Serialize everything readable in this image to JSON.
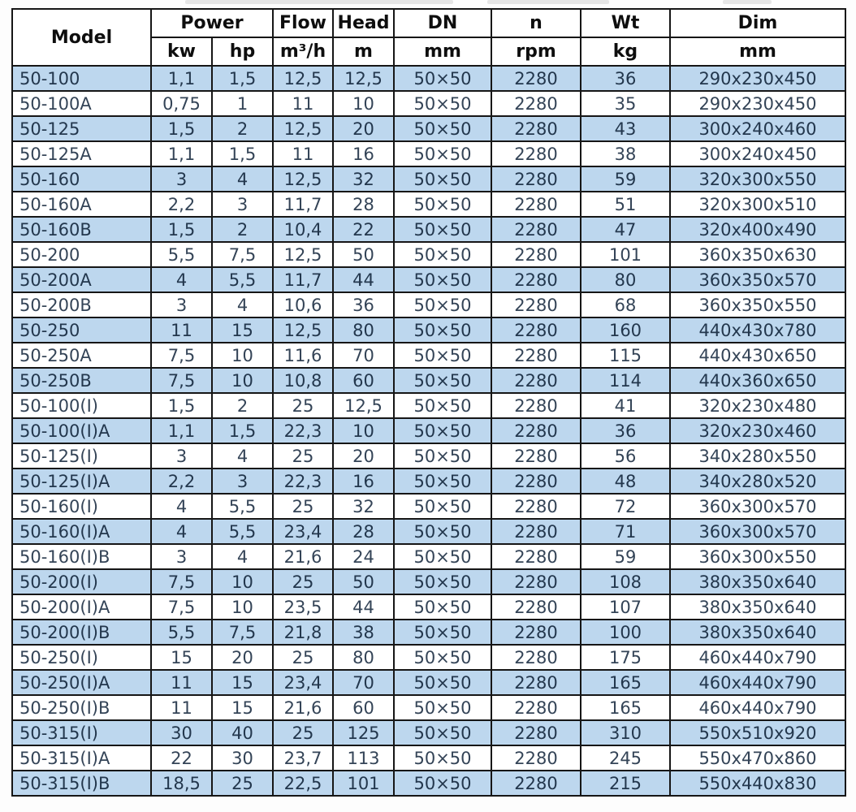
{
  "colors": {
    "alt_row_bg": "#bdd7ee",
    "grid_border": "#161616",
    "body_text": "#344457",
    "header_text": "#0e0e0e",
    "page_bg": "#fdfdfd"
  },
  "table": {
    "header": {
      "model_label": "Model",
      "power_label": "Power",
      "power_units": [
        "kw",
        "hp"
      ],
      "flow_label": "Flow",
      "flow_unit": "m³/h",
      "head_label": "Head",
      "head_unit": "m",
      "dn_label": "DN",
      "dn_unit": "mm",
      "n_label": "n",
      "n_unit": "rpm",
      "wt_label": "Wt",
      "wt_unit": "kg",
      "dim_label": "Dim",
      "dim_unit": "mm"
    },
    "rows": [
      [
        "50-100",
        "1,1",
        "1,5",
        "12,5",
        "12,5",
        "50×50",
        "2280",
        "36",
        "290x230x450"
      ],
      [
        "50-100A",
        "0,75",
        "1",
        "11",
        "10",
        "50×50",
        "2280",
        "35",
        "290x230x450"
      ],
      [
        "50-125",
        "1,5",
        "2",
        "12,5",
        "20",
        "50×50",
        "2280",
        "43",
        "300x240x460"
      ],
      [
        "50-125A",
        "1,1",
        "1,5",
        "11",
        "16",
        "50×50",
        "2280",
        "38",
        "300x240x450"
      ],
      [
        "50-160",
        "3",
        "4",
        "12,5",
        "32",
        "50×50",
        "2280",
        "59",
        "320x300x550"
      ],
      [
        "50-160A",
        "2,2",
        "3",
        "11,7",
        "28",
        "50×50",
        "2280",
        "51",
        "320x300x510"
      ],
      [
        "50-160B",
        "1,5",
        "2",
        "10,4",
        "22",
        "50×50",
        "2280",
        "47",
        "320x400x490"
      ],
      [
        "50-200",
        "5,5",
        "7,5",
        "12,5",
        "50",
        "50×50",
        "2280",
        "101",
        "360x350x630"
      ],
      [
        "50-200A",
        "4",
        "5,5",
        "11,7",
        "44",
        "50×50",
        "2280",
        "80",
        "360x350x570"
      ],
      [
        "50-200B",
        "3",
        "4",
        "10,6",
        "36",
        "50×50",
        "2280",
        "68",
        "360x350x550"
      ],
      [
        "50-250",
        "11",
        "15",
        "12,5",
        "80",
        "50×50",
        "2280",
        "160",
        "440x430x780"
      ],
      [
        "50-250A",
        "7,5",
        "10",
        "11,6",
        "70",
        "50×50",
        "2280",
        "115",
        "440x430x650"
      ],
      [
        "50-250B",
        "7,5",
        "10",
        "10,8",
        "60",
        "50×50",
        "2280",
        "114",
        "440x360x650"
      ],
      [
        "50-100(I)",
        "1,5",
        "2",
        "25",
        "12,5",
        "50×50",
        "2280",
        "41",
        "320x230x480"
      ],
      [
        "50-100(I)A",
        "1,1",
        "1,5",
        "22,3",
        "10",
        "50×50",
        "2280",
        "36",
        "320x230x460"
      ],
      [
        "50-125(I)",
        "3",
        "4",
        "25",
        "20",
        "50×50",
        "2280",
        "56",
        "340x280x550"
      ],
      [
        "50-125(I)A",
        "2,2",
        "3",
        "22,3",
        "16",
        "50×50",
        "2280",
        "48",
        "340x280x520"
      ],
      [
        "50-160(I)",
        "4",
        "5,5",
        "25",
        "32",
        "50×50",
        "2280",
        "72",
        "360x300x570"
      ],
      [
        "50-160(I)A",
        "4",
        "5,5",
        "23,4",
        "28",
        "50×50",
        "2280",
        "71",
        "360x300x570"
      ],
      [
        "50-160(I)B",
        "3",
        "4",
        "21,6",
        "24",
        "50×50",
        "2280",
        "59",
        "360x300x550"
      ],
      [
        "50-200(I)",
        "7,5",
        "10",
        "25",
        "50",
        "50×50",
        "2280",
        "108",
        "380x350x640"
      ],
      [
        "50-200(I)A",
        "7,5",
        "10",
        "23,5",
        "44",
        "50×50",
        "2280",
        "107",
        "380x350x640"
      ],
      [
        "50-200(I)B",
        "5,5",
        "7,5",
        "21,8",
        "38",
        "50×50",
        "2280",
        "100",
        "380x350x640"
      ],
      [
        "50-250(I)",
        "15",
        "20",
        "25",
        "80",
        "50×50",
        "2280",
        "175",
        "460x440x790"
      ],
      [
        "50-250(I)A",
        "11",
        "15",
        "23,4",
        "70",
        "50×50",
        "2280",
        "165",
        "460x440x790"
      ],
      [
        "50-250(I)B",
        "11",
        "15",
        "21,6",
        "60",
        "50×50",
        "2280",
        "165",
        "460x440x790"
      ],
      [
        "50-315(I)",
        "30",
        "40",
        "25",
        "125",
        "50×50",
        "2280",
        "310",
        "550x510x920"
      ],
      [
        "50-315(I)A",
        "22",
        "30",
        "23,7",
        "113",
        "50×50",
        "2280",
        "245",
        "550x470x860"
      ],
      [
        "50-315(I)B",
        "18,5",
        "25",
        "22,5",
        "101",
        "50×50",
        "2280",
        "215",
        "550x440x830"
      ]
    ]
  }
}
